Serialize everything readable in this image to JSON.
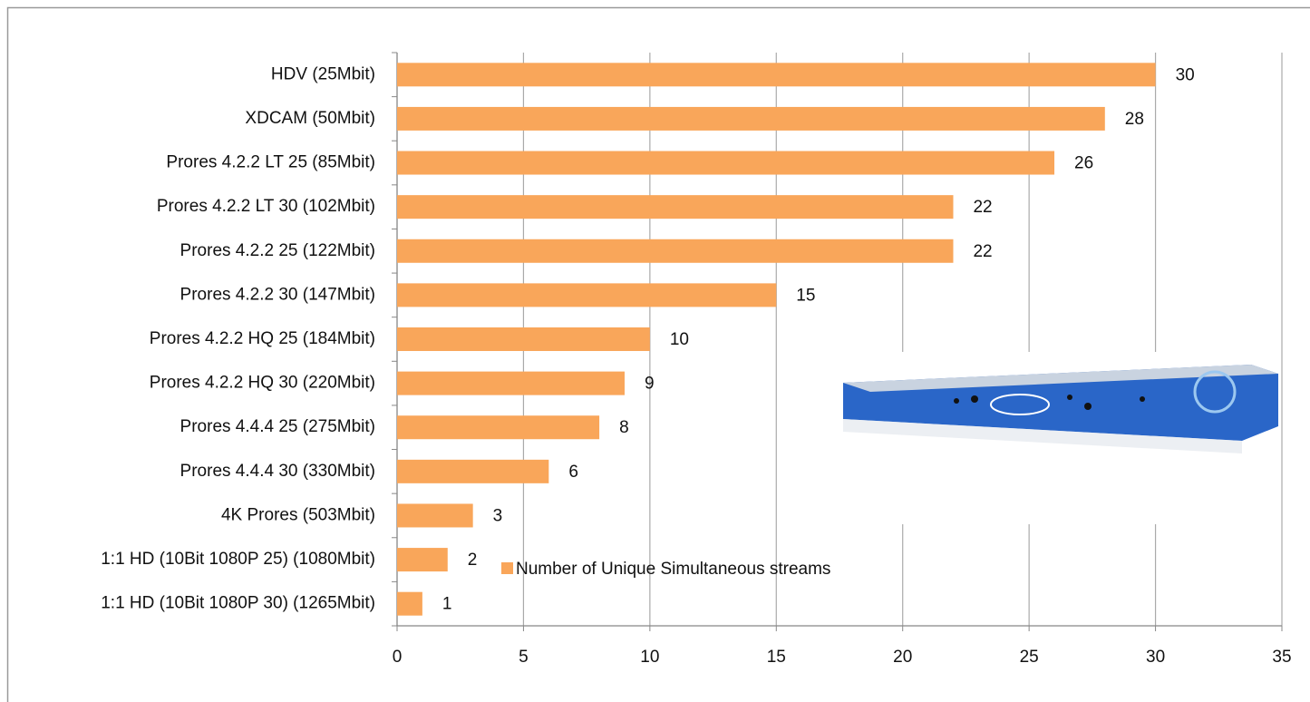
{
  "chart_data": {
    "type": "bar",
    "orientation": "horizontal",
    "categories": [
      "HDV (25Mbit)",
      "XDCAM (50Mbit)",
      "Prores 4.2.2 LT 25 (85Mbit)",
      "Prores 4.2.2 LT 30 (102Mbit)",
      "Prores 4.2.2 25 (122Mbit)",
      "Prores 4.2.2 30 (147Mbit)",
      "Prores 4.2.2 HQ 25 (184Mbit)",
      "Prores 4.2.2 HQ 30 (220Mbit)",
      "Prores 4.4.4 25 (275Mbit)",
      "Prores 4.4.4 30 (330Mbit)",
      "4K Prores (503Mbit)",
      "1:1 HD (10Bit 1080P 25) (1080Mbit)",
      "1:1 HD (10Bit 1080P 30) (1265Mbit)"
    ],
    "series": [
      {
        "name": "Number of Unique Simultaneous streams",
        "color": "#f9a65a",
        "values": [
          30,
          28,
          26,
          22,
          22,
          15,
          10,
          9,
          8,
          6,
          3,
          2,
          1
        ]
      }
    ],
    "xlim": [
      0,
      35
    ],
    "xticks": [
      0,
      5,
      10,
      15,
      20,
      25,
      30,
      35
    ],
    "grid": true
  }
}
